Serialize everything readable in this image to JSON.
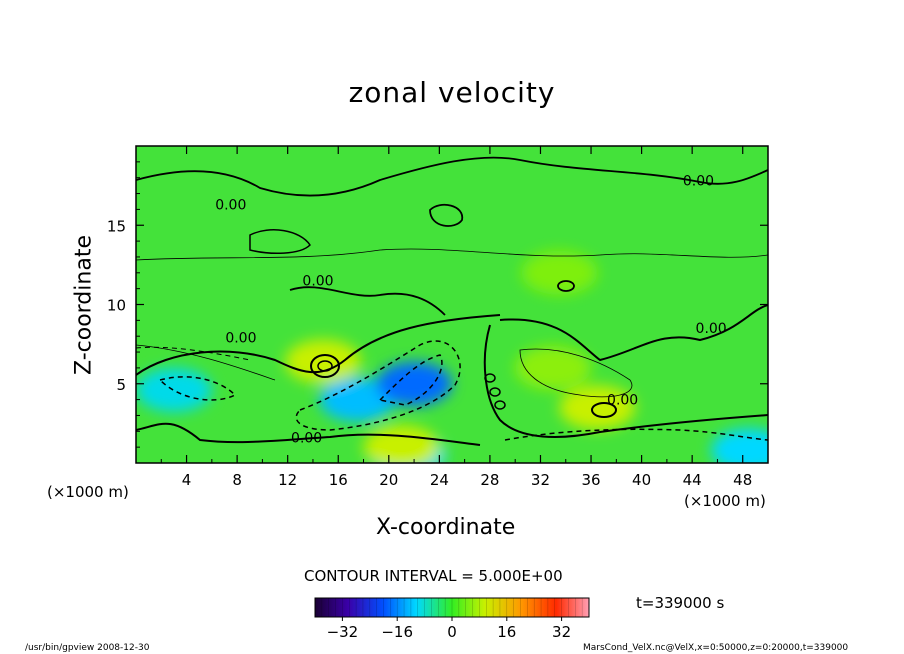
{
  "chart_data": {
    "type": "heatmap",
    "title": "zonal velocity",
    "xlabel": "X-coordinate",
    "ylabel": "Z-coordinate",
    "x_unit": "(×1000 m)",
    "y_unit": "(×1000 m)",
    "xlim": [
      0,
      50
    ],
    "ylim": [
      0,
      20
    ],
    "x_ticks": [
      4,
      8,
      12,
      16,
      20,
      24,
      28,
      32,
      36,
      40,
      44,
      48
    ],
    "y_ticks": [
      5,
      10,
      15
    ],
    "contour_interval_text": "CONTOUR INTERVAL = 5.000E+00",
    "contour_labels": [
      {
        "text": "0.00",
        "x": 7.5,
        "y": 16.0
      },
      {
        "text": "0.00",
        "x": 44.5,
        "y": 17.5
      },
      {
        "text": "0.00",
        "x": 14.4,
        "y": 11.2
      },
      {
        "text": "0.00",
        "x": 8.3,
        "y": 7.6
      },
      {
        "text": "0.00",
        "x": 45.5,
        "y": 8.2
      },
      {
        "text": "0.00",
        "x": 38.5,
        "y": 3.7
      },
      {
        "text": "0.00",
        "x": 13.5,
        "y": 1.3
      }
    ],
    "colorbar": {
      "min": -40,
      "max": 40,
      "ticks": [
        -32,
        -16,
        0,
        16,
        32
      ],
      "tick_labels": [
        "−32",
        "−16",
        "0",
        "16",
        "32"
      ]
    },
    "time_label": "t=339000 s",
    "field_features": [
      {
        "value": -12,
        "x": 17.5,
        "y": 4.0
      },
      {
        "value": -18,
        "x": 22.0,
        "y": 5.0
      },
      {
        "value": -9,
        "x": 3.0,
        "y": 4.6
      },
      {
        "value": -10,
        "x": 21.5,
        "y": 0.5
      },
      {
        "value": -10,
        "x": 48.5,
        "y": 0.8
      },
      {
        "value": 10,
        "x": 14.8,
        "y": 6.4
      },
      {
        "value": 10,
        "x": 36.5,
        "y": 3.5
      },
      {
        "value": 6,
        "x": 33.0,
        "y": 6.0
      },
      {
        "value": 5,
        "x": 33.5,
        "y": 12.0
      },
      {
        "value": 10,
        "x": 21.0,
        "y": 1.0
      }
    ],
    "grid": false,
    "colormap": "rainbow"
  },
  "footer": {
    "left": "/usr/bin/gpview   2008-12-30",
    "right": "MarsCond_VelX.nc@VelX,x=0:50000,z=0:20000,t=339000"
  }
}
